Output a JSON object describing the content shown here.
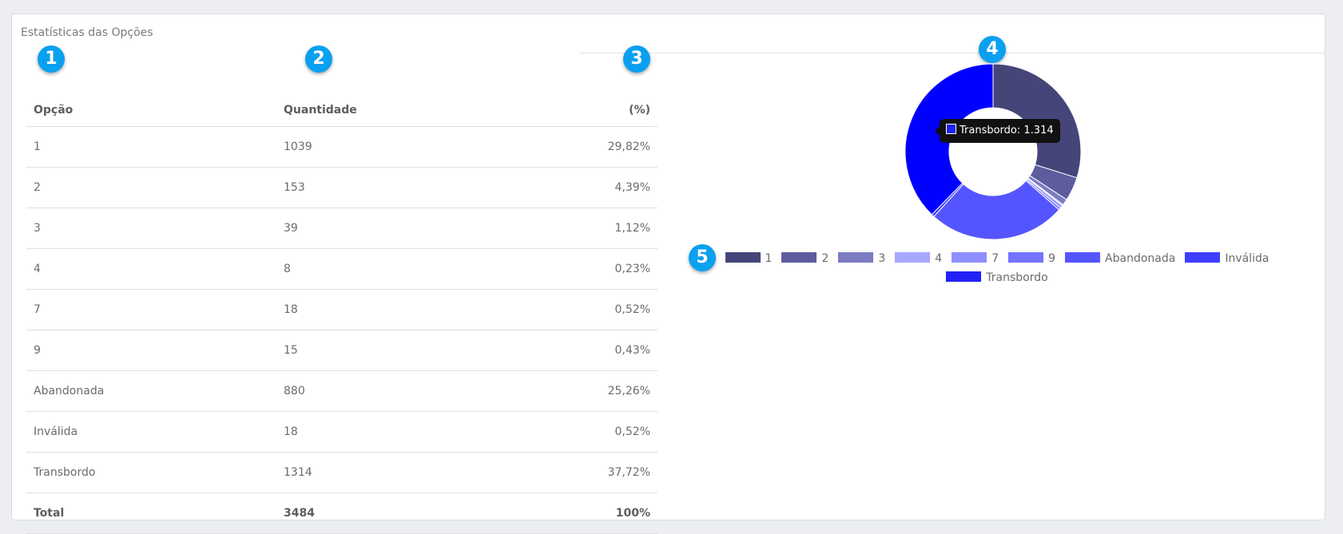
{
  "card": {
    "title": "Estatísticas das Opções"
  },
  "table": {
    "headers": [
      "Opção",
      "Quantidade",
      "(%)"
    ],
    "rows": [
      [
        "1",
        "1039",
        "29,82%"
      ],
      [
        "2",
        "153",
        "4,39%"
      ],
      [
        "3",
        "39",
        "1,12%"
      ],
      [
        "4",
        "8",
        "0,23%"
      ],
      [
        "7",
        "18",
        "0,52%"
      ],
      [
        "9",
        "15",
        "0,43%"
      ],
      [
        "Abandonada",
        "880",
        "25,26%"
      ],
      [
        "Inválida",
        "18",
        "0,52%"
      ],
      [
        "Transbordo",
        "1314",
        "37,72%"
      ]
    ],
    "total": [
      "Total",
      "3484",
      "100%"
    ]
  },
  "badges": [
    "1",
    "2",
    "3",
    "4",
    "5"
  ],
  "tooltip": {
    "text": "Transbordo: 1.314"
  },
  "chart_data": {
    "type": "pie",
    "style": "doughnut",
    "categories": [
      "1",
      "2",
      "3",
      "4",
      "7",
      "9",
      "Abandonada",
      "Inválida",
      "Transbordo"
    ],
    "values": [
      1039,
      153,
      39,
      8,
      18,
      15,
      880,
      18,
      1314
    ],
    "colors": [
      "#45457a",
      "#5c5c9e",
      "#7b7bc2",
      "#a7a7ff",
      "#8f8fff",
      "#7373ff",
      "#5555ff",
      "#3d3dff",
      "#2222f6"
    ],
    "legend": "bottom",
    "highlighted": {
      "label": "Transbordo",
      "value": "1.314",
      "color": "#0000ff"
    }
  }
}
